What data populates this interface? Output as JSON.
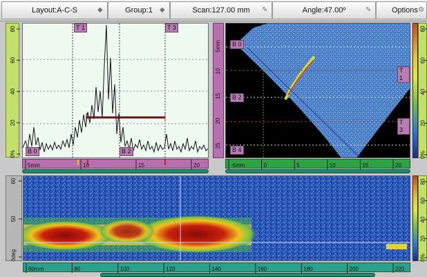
{
  "toolbar": {
    "layout": "Layout:A-C-S",
    "group": "Group:1",
    "scan": "Scan:127.00 mm",
    "angle": "Angle:47.00º",
    "options": "Options"
  },
  "ascan": {
    "markers": {
      "t1": "T 1",
      "t3": "T 3",
      "b0": "B 0",
      "b2": "B 2"
    },
    "v_ticks": [
      "0%",
      "20",
      "40",
      "60",
      "80"
    ],
    "h_ticks": [
      "5mm",
      "10",
      "15",
      "20"
    ]
  },
  "sscan": {
    "markers": {
      "b0": "B 0",
      "b2": "B 2",
      "b4": "B 4",
      "t1": "T 1",
      "t3": "T 3"
    },
    "v_ticks": [
      "5mm",
      "10",
      "15",
      "20",
      "25"
    ],
    "h_ticks": [
      "-5mm",
      "0",
      "5",
      "10",
      "15",
      "20"
    ],
    "cb_ticks": [
      "0%",
      "20",
      "40",
      "60",
      "80"
    ]
  },
  "cscan": {
    "v_ticks": [
      "40deg",
      "50",
      "60"
    ],
    "h_ticks": [
      "60mm",
      "80",
      "100",
      "120",
      "140",
      "160",
      "180",
      "200",
      "220"
    ],
    "cb_ticks": [
      "0%",
      "20",
      "40",
      "60",
      "80"
    ]
  },
  "colors": {
    "ascan_bg": "#eefaf0",
    "scan_bg": "#000000",
    "trace": "#111111"
  }
}
